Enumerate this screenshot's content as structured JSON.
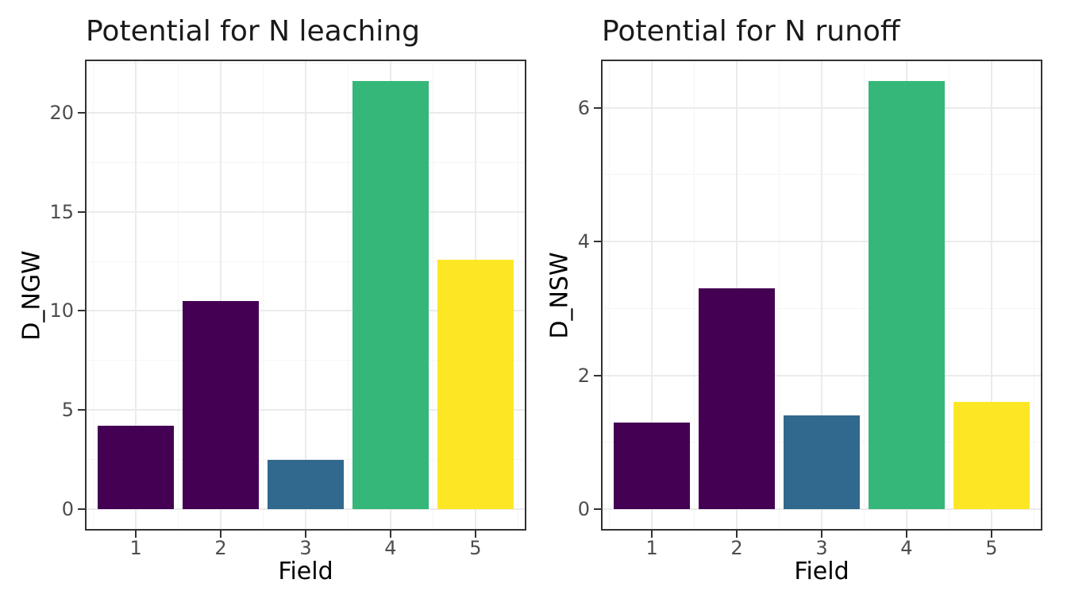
{
  "figure_title": "",
  "chart_data": [
    {
      "type": "bar",
      "title": "Potential for N leaching",
      "xlabel": "Field",
      "ylabel": "D_NGW",
      "categories": [
        "1",
        "2",
        "3",
        "4",
        "5"
      ],
      "values": [
        4.2,
        10.5,
        2.5,
        21.6,
        12.6
      ],
      "bar_colors": [
        "#440154",
        "#440154",
        "#31688E",
        "#35B779",
        "#FDE725"
      ],
      "yticks": [
        0,
        5,
        10,
        15,
        20
      ],
      "yminor": [
        2.5,
        7.5,
        12.5,
        17.5,
        22.5
      ],
      "ylim": [
        0,
        22.7
      ],
      "grid": true,
      "legend": "none"
    },
    {
      "type": "bar",
      "title": "Potential for N runoff",
      "xlabel": "Field",
      "ylabel": "D_NSW",
      "categories": [
        "1",
        "2",
        "3",
        "4",
        "5"
      ],
      "values": [
        1.3,
        3.3,
        1.4,
        6.4,
        1.6
      ],
      "bar_colors": [
        "#440154",
        "#440154",
        "#31688E",
        "#35B779",
        "#FDE725"
      ],
      "yticks": [
        0,
        2,
        4,
        6
      ],
      "yminor": [
        1,
        3,
        5
      ],
      "ylim": [
        0,
        6.7
      ],
      "grid": true,
      "legend": "none"
    }
  ],
  "theme": {
    "background": "#FFFFFF",
    "panel_background": "#FFFFFF",
    "panel_border": "#333333",
    "grid_major": "#EBEBEB",
    "grid_minor": "#F5F5F5",
    "tick_color": "#333333",
    "tick_label_color": "#4D4D4D",
    "title_color": "#1A1A1A",
    "axis_title_color": "#000000"
  }
}
